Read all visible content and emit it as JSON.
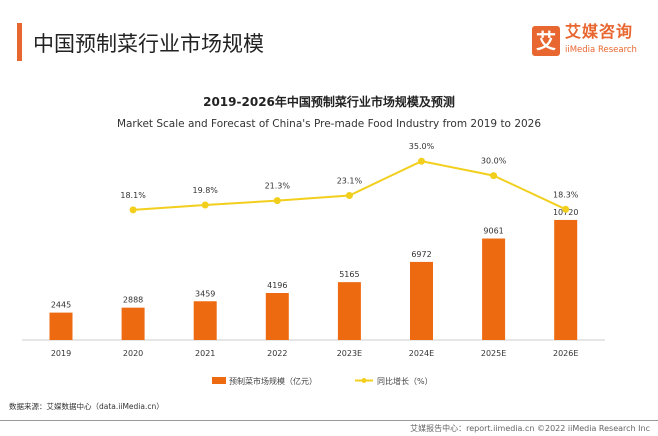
{
  "header": {
    "title": "中国预制菜行业市场规模"
  },
  "logo": {
    "mark": "艾",
    "cn": "艾媒咨询",
    "en": "iiMedia Research"
  },
  "chart_data": {
    "type": "bar+line",
    "title": "2019-2026年中国预制菜行业市场规模及预测",
    "subtitle": "Market Scale and Forecast of China's Pre-made Food Industry from 2019 to 2026",
    "categories": [
      "2019",
      "2020",
      "2021",
      "2022",
      "2023E",
      "2024E",
      "2025E",
      "2026E"
    ],
    "series": [
      {
        "name": "预制菜市场规模（亿元）",
        "type": "bar",
        "color": "#ee6a10",
        "values": [
          2445,
          2888,
          3459,
          4196,
          5165,
          6972,
          9061,
          10720
        ],
        "labels": [
          "2445",
          "2888",
          "3459",
          "4196",
          "5165",
          "6972",
          "9061",
          "10720"
        ]
      },
      {
        "name": "同比增长（%）",
        "type": "line",
        "color": "#f2cf1d",
        "values": [
          null,
          18.1,
          19.8,
          21.3,
          23.1,
          35.0,
          30.0,
          18.3
        ],
        "labels": [
          "",
          "18.1%",
          "19.8%",
          "21.3%",
          "23.1%",
          "35.0%",
          "30.0%",
          "18.3%"
        ]
      }
    ],
    "legend": "bottom",
    "grid": false
  },
  "source": "数据来源：艾媒数据中心（data.iiMedia.cn）",
  "footer": "艾媒报告中心：report.iimedia.cn   ©2022  iiMedia Research  Inc"
}
